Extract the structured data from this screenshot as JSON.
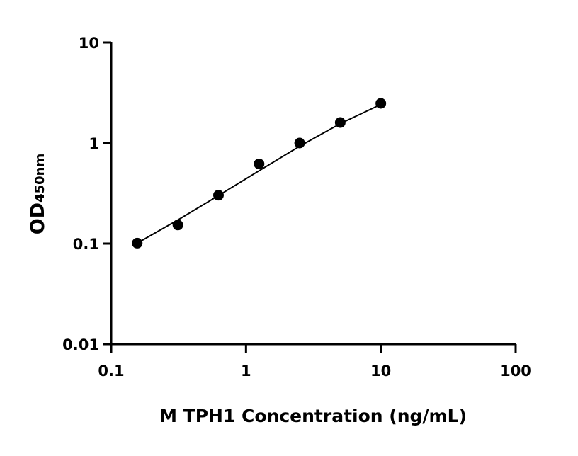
{
  "chart_data": {
    "type": "scatter",
    "title": "",
    "xlabel": "M TPH1 Concentration (ng/mL)",
    "ylabel": "OD",
    "ylabel_subscript": "450nm",
    "x_scale": "log",
    "y_scale": "log",
    "xlim": [
      0.1,
      100
    ],
    "ylim": [
      0.01,
      10
    ],
    "x_ticks": [
      0.1,
      1,
      10,
      100
    ],
    "x_tick_labels": [
      "0.1",
      "1",
      "10",
      "100"
    ],
    "y_ticks": [
      0.01,
      0.1,
      1,
      10
    ],
    "y_tick_labels": [
      "0.01",
      "0.1",
      "1",
      "10"
    ],
    "grid": false,
    "legend": "none",
    "series": [
      {
        "x": [
          0.156,
          0.3125,
          0.625,
          1.25,
          2.5,
          5,
          10
        ],
        "y": [
          0.101,
          0.153,
          0.303,
          0.62,
          1.0,
          1.6,
          2.48
        ],
        "marker": "circle",
        "color": "#000000"
      }
    ],
    "fit_curve": {
      "x": [
        0.156,
        0.3125,
        0.625,
        1.25,
        2.5,
        5,
        10
      ],
      "y": [
        0.101,
        0.172,
        0.3,
        0.53,
        0.93,
        1.56,
        2.42
      ],
      "color": "#000000"
    }
  }
}
